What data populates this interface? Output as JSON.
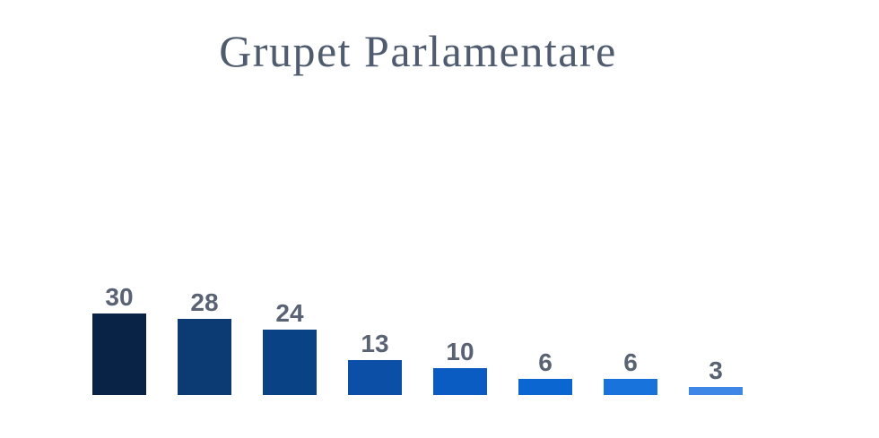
{
  "title": "Grupet Parlamentare",
  "colors": {
    "background": "#ffffff",
    "title_text": "#4f5b6e",
    "value_label_text": "#5a6374"
  },
  "chart_data": {
    "type": "bar",
    "title": "Grupet Parlamentare",
    "values": [
      30,
      28,
      24,
      13,
      10,
      6,
      6,
      3
    ],
    "data_labels": [
      "30",
      "28",
      "24",
      "13",
      "10",
      "6",
      "6",
      "3"
    ],
    "bar_colors": [
      "#082345",
      "#0c3a72",
      "#0a4286",
      "#0b50a6",
      "#0a5cc2",
      "#0b66d2",
      "#1973dc",
      "#3e87e6"
    ],
    "label_color": "#5a6374",
    "xlabel": "",
    "ylabel": "",
    "ylim": [
      0,
      30
    ],
    "grid": false,
    "legend": false,
    "axis_lines": false,
    "data_labels_position": "above-bar"
  }
}
